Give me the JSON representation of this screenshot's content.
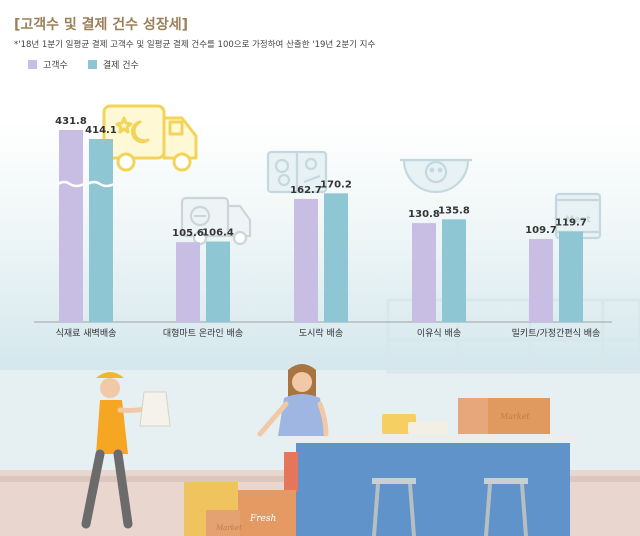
{
  "title": "[고객수 및 결제 건수 성장세]",
  "note": "*'18년 1분기 일평균 결제 고객수 및 일평균 결제 건수를 100으로 가정하여 산출한 '19년 2분기 지수",
  "decor": {
    "box_label_1": "Fresh",
    "box_label_2": "Market",
    "box_label_3": "Market",
    "bag_label": "Meat"
  },
  "chart_data": {
    "type": "bar",
    "categories": [
      "식재료 새벽배송",
      "대형마트 온라인 배송",
      "도시락 배송",
      "이유식 배송",
      "밀키트/가정간편식 배송"
    ],
    "series": [
      {
        "name": "고객수",
        "values": [
          431.8,
          105.6,
          162.7,
          130.8,
          109.7
        ]
      },
      {
        "name": "결제 건수",
        "values": [
          414.1,
          106.4,
          170.2,
          135.8,
          119.7
        ]
      }
    ],
    "value_labels": [
      [
        "431.8",
        "105.6",
        "162.7",
        "130.8",
        "109.7"
      ],
      [
        "414.1",
        "106.4",
        "170.2",
        "135.8",
        "119.7"
      ]
    ],
    "axis_break": "first category bars are truncated with a wavy break",
    "colors": {
      "고객수": "#c8bde2",
      "결제 건수": "#8fc6d4"
    },
    "legend_placement": "top-left",
    "grid": false
  }
}
